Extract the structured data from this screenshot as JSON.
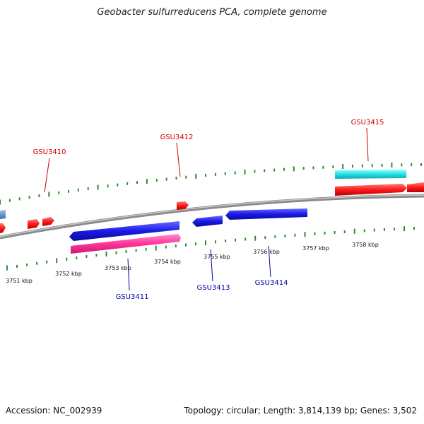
{
  "title": "Geobacter sulfurreducens PCA, complete genome",
  "footer": {
    "accession": "Accession: NC_002939",
    "topology": "Topology: circular; Length: 3,814,139 bp; Genes: 3,502"
  },
  "colors": {
    "backbone": "#8a8a8a",
    "tick": "#2e8b2e",
    "gene_red": "#ff1a1a",
    "gene_blue": "#1a1ae6",
    "gene_pink": "#ff3399",
    "gene_cyan": "#22e0e8",
    "gene_steelblue": "#5a8fc6",
    "label_red": "#cc0000",
    "label_blue": "#0000aa"
  },
  "scale": {
    "unit": "kbp",
    "labels": [
      "3751 kbp",
      "3752 kbp",
      "3753 kbp",
      "3754 kbp",
      "3755 kbp",
      "3756 kbp",
      "3757 kbp",
      "3758 kbp"
    ]
  },
  "gene_labels": [
    {
      "name": "GSU3410",
      "strand": "top"
    },
    {
      "name": "GSU3411",
      "strand": "bottom"
    },
    {
      "name": "GSU3412",
      "strand": "top"
    },
    {
      "name": "GSU3413",
      "strand": "bottom"
    },
    {
      "name": "GSU3414",
      "strand": "bottom"
    },
    {
      "name": "GSU3415",
      "strand": "top"
    }
  ]
}
